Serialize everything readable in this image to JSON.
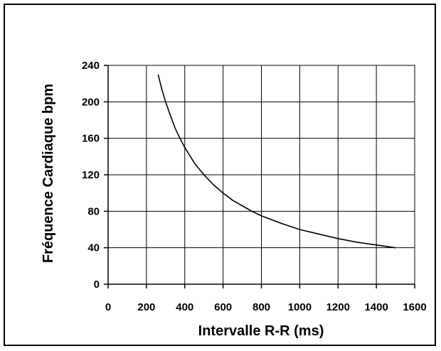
{
  "chart_data": {
    "type": "line",
    "title": "",
    "xlabel": "Intervalle R-R (ms)",
    "ylabel": "Fréquence Cardiaque bpm",
    "xlim": [
      0,
      1600
    ],
    "ylim": [
      0,
      240
    ],
    "x_ticks": [
      0,
      200,
      400,
      600,
      800,
      1000,
      1200,
      1400,
      1600
    ],
    "y_ticks": [
      0,
      40,
      80,
      120,
      160,
      200,
      240
    ],
    "grid": true,
    "legend": "none",
    "line_color": "#000000",
    "series": [
      {
        "x": [
          261,
          280,
          300,
          325,
          350,
          375,
          400,
          450,
          500,
          550,
          600,
          650,
          700,
          750,
          800,
          900,
          1000,
          1100,
          1200,
          1300,
          1400,
          1500
        ],
        "values": [
          230,
          214,
          200,
          185,
          171,
          160,
          150,
          133,
          120,
          109,
          100,
          92,
          86,
          80,
          75,
          67,
          60,
          55,
          50,
          46,
          43,
          40
        ]
      }
    ]
  }
}
